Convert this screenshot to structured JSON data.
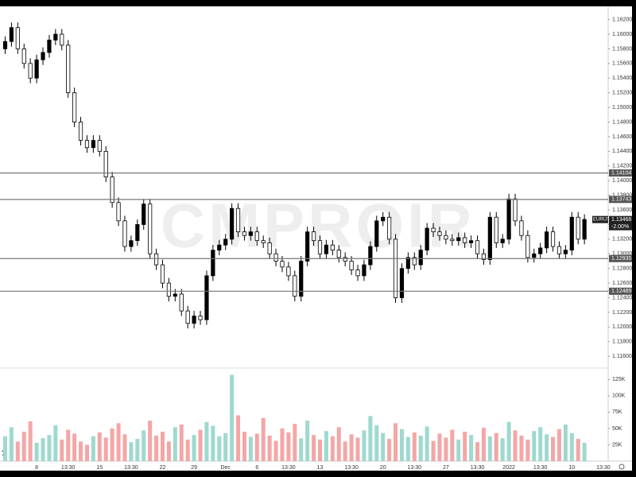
{
  "chart_data": {
    "type": "candlestick",
    "symbol": "EURUSD",
    "watermark": "CMPROIR",
    "change": "-2.00%",
    "last_price": {
      "value": 1.13468,
      "label": "1.13468"
    },
    "up_color": "#000000",
    "down_color": "#ffffff",
    "vol_up_color": "#9ed9cf",
    "vol_down_color": "#f4a6a6",
    "categories": [
      null,
      null,
      null,
      null,
      null,
      "8",
      null,
      null,
      null,
      null,
      "13:30",
      null,
      null,
      null,
      null,
      "15",
      null,
      null,
      null,
      null,
      "13:30",
      null,
      null,
      null,
      null,
      "22",
      null,
      null,
      null,
      null,
      "29",
      null,
      null,
      null,
      null,
      "Dec",
      null,
      null,
      null,
      null,
      "6",
      null,
      null,
      null,
      null,
      "13:30",
      null,
      null,
      null,
      null,
      "13",
      null,
      null,
      null,
      null,
      "13:30",
      null,
      null,
      null,
      null,
      "20",
      null,
      null,
      null,
      null,
      "13:30",
      null,
      null,
      null,
      null,
      "27",
      null,
      null,
      null,
      null,
      "13:30",
      null,
      null,
      null,
      null,
      "2022",
      null,
      null,
      null,
      null,
      "13:30",
      null,
      null,
      null,
      null,
      "10",
      null,
      null,
      null,
      null,
      "13:30"
    ],
    "open": [
      1.158,
      1.159,
      1.1609,
      1.158,
      1.156,
      1.154,
      1.1565,
      1.1575,
      1.1592,
      1.16,
      1.1585,
      1.152,
      1.148,
      1.1455,
      1.1445,
      1.1455,
      1.144,
      1.1405,
      1.137,
      1.1345,
      1.131,
      1.1318,
      1.134,
      1.1368,
      1.13,
      1.1285,
      1.126,
      1.1242,
      1.1245,
      1.1222,
      1.1205,
      1.1215,
      1.121,
      1.127,
      1.1305,
      1.1312,
      1.132,
      1.1362,
      1.133,
      1.1325,
      1.133,
      1.1318,
      1.1315,
      1.13,
      1.129,
      1.1282,
      1.127,
      1.1242,
      1.129,
      1.133,
      1.1318,
      1.13,
      1.1312,
      1.1305,
      1.1295,
      1.129,
      1.1278,
      1.127,
      1.1285,
      1.131,
      1.1345,
      1.135,
      1.132,
      1.124,
      1.128,
      1.1295,
      1.1285,
      1.1305,
      1.1335,
      1.133,
      1.1325,
      1.132,
      1.1318,
      1.1322,
      1.1315,
      1.1318,
      1.13,
      1.1292,
      1.135,
      1.1315,
      1.132,
      1.1375,
      1.1345,
      1.1325,
      1.1295,
      1.13,
      1.1308,
      1.133,
      1.131,
      1.13,
      1.1305,
      1.135,
      1.132,
      null,
      null,
      null
    ],
    "high": [
      1.1597,
      1.1616,
      1.1616,
      1.1587,
      1.1567,
      1.1572,
      1.1582,
      1.1599,
      1.1607,
      1.1607,
      1.1592,
      1.1527,
      1.1487,
      1.1462,
      1.1462,
      1.1462,
      1.1447,
      1.1412,
      1.1377,
      1.1352,
      1.1325,
      1.1347,
      1.1375,
      1.1375,
      1.1307,
      1.1292,
      1.1267,
      1.1252,
      1.1252,
      1.1229,
      1.1222,
      1.1222,
      1.1277,
      1.1312,
      1.1319,
      1.1327,
      1.1369,
      1.1369,
      1.1337,
      1.1337,
      1.1337,
      1.1325,
      1.1322,
      1.1307,
      1.1297,
      1.1289,
      1.1277,
      1.1297,
      1.1337,
      1.1337,
      1.1325,
      1.1319,
      1.1319,
      1.1312,
      1.1302,
      1.1297,
      1.1285,
      1.1292,
      1.1317,
      1.1352,
      1.1357,
      1.1357,
      1.1327,
      1.1287,
      1.1302,
      1.1302,
      1.1312,
      1.1342,
      1.1342,
      1.1337,
      1.1332,
      1.1327,
      1.1329,
      1.1329,
      1.1325,
      1.1325,
      1.1307,
      1.1357,
      1.1357,
      1.1327,
      1.1382,
      1.1382,
      1.1352,
      1.1332,
      1.1307,
      1.1315,
      1.1337,
      1.1337,
      1.1317,
      1.1312,
      1.1357,
      1.1357,
      1.1354,
      null,
      null,
      null
    ],
    "low": [
      1.1573,
      1.1583,
      1.1573,
      1.1553,
      1.1533,
      1.1533,
      1.1558,
      1.1568,
      1.1585,
      1.1578,
      1.1513,
      1.1473,
      1.1448,
      1.1438,
      1.1438,
      1.1433,
      1.1398,
      1.1363,
      1.1338,
      1.1303,
      1.1303,
      1.1311,
      1.1333,
      1.1293,
      1.1278,
      1.1253,
      1.1235,
      1.1235,
      1.1215,
      1.1198,
      1.1198,
      1.1203,
      1.1203,
      1.1263,
      1.1298,
      1.1305,
      1.1313,
      1.1323,
      1.1318,
      1.1318,
      1.1311,
      1.1308,
      1.1293,
      1.1283,
      1.1275,
      1.1263,
      1.1235,
      1.1235,
      1.1283,
      1.1311,
      1.1293,
      1.1293,
      1.1298,
      1.1288,
      1.1283,
      1.1271,
      1.1263,
      1.1263,
      1.1278,
      1.1303,
      1.1338,
      1.1313,
      1.1233,
      1.1233,
      1.1273,
      1.1278,
      1.1278,
      1.1298,
      1.1323,
      1.1318,
      1.1313,
      1.1311,
      1.1311,
      1.1308,
      1.1308,
      1.1293,
      1.1285,
      1.1285,
      1.1308,
      1.1308,
      1.1313,
      1.1338,
      1.1318,
      1.1288,
      1.1288,
      1.1293,
      1.1301,
      1.1303,
      1.1293,
      1.1293,
      1.1298,
      1.1313,
      1.1313,
      null,
      null,
      null
    ],
    "close": [
      1.159,
      1.1609,
      1.158,
      1.156,
      1.154,
      1.1565,
      1.1575,
      1.1592,
      1.16,
      1.1585,
      1.152,
      1.148,
      1.1455,
      1.1445,
      1.1455,
      1.144,
      1.1405,
      1.137,
      1.1345,
      1.131,
      1.1318,
      1.134,
      1.1368,
      1.13,
      1.1285,
      1.126,
      1.1242,
      1.1245,
      1.1222,
      1.1205,
      1.1215,
      1.121,
      1.127,
      1.1305,
      1.1312,
      1.132,
      1.1362,
      1.133,
      1.1325,
      1.133,
      1.1318,
      1.1315,
      1.13,
      1.129,
      1.1282,
      1.127,
      1.1242,
      1.129,
      1.133,
      1.1318,
      1.13,
      1.1312,
      1.1305,
      1.1295,
      1.129,
      1.1278,
      1.127,
      1.1285,
      1.131,
      1.1345,
      1.135,
      1.132,
      1.124,
      1.128,
      1.1295,
      1.1285,
      1.1305,
      1.1335,
      1.133,
      1.1325,
      1.132,
      1.1318,
      1.1322,
      1.1315,
      1.1318,
      1.13,
      1.1292,
      1.135,
      1.1315,
      1.132,
      1.1375,
      1.1345,
      1.1325,
      1.1295,
      1.13,
      1.1308,
      1.133,
      1.131,
      1.13,
      1.1305,
      1.135,
      1.132,
      1.1347,
      null,
      null,
      null
    ],
    "volume": [
      38000,
      52000,
      30000,
      45000,
      61000,
      28000,
      35000,
      40000,
      55000,
      33000,
      48000,
      42000,
      30000,
      25000,
      38000,
      44000,
      36000,
      50000,
      58000,
      41000,
      29000,
      34000,
      47000,
      62000,
      39000,
      45000,
      30000,
      52000,
      56000,
      33000,
      40000,
      48000,
      60000,
      54000,
      38000,
      43000,
      132000,
      70000,
      45000,
      37000,
      42000,
      66000,
      39000,
      31000,
      50000,
      44000,
      57000,
      35000,
      62000,
      40000,
      33000,
      46000,
      38000,
      52000,
      30000,
      41000,
      36000,
      47000,
      69000,
      55000,
      43000,
      34000,
      58000,
      49000,
      37000,
      44000,
      39000,
      53000,
      31000,
      42000,
      36000,
      48000,
      33000,
      45000,
      40000,
      29000,
      51000,
      38000,
      43000,
      35000,
      60000,
      47000,
      39000,
      33000,
      46000,
      52000,
      41000,
      37000,
      49000,
      56000,
      43000,
      34000,
      28000,
      null,
      null,
      null
    ],
    "ylim": [
      1.1145,
      1.1638
    ],
    "yticks": [
      {
        "value": 1.116,
        "label": "1.11600"
      },
      {
        "value": 1.118,
        "label": "1.11800"
      },
      {
        "value": 1.12,
        "label": "1.12000"
      },
      {
        "value": 1.122,
        "label": "1.12200"
      },
      {
        "value": 1.124,
        "label": "1.12400"
      },
      {
        "value": 1.126,
        "label": "1.12600"
      },
      {
        "value": 1.128,
        "label": "1.12800"
      },
      {
        "value": 1.13,
        "label": "1.13000"
      },
      {
        "value": 1.132,
        "label": "1.13200"
      },
      {
        "value": 1.134,
        "label": "1.13400"
      },
      {
        "value": 1.136,
        "label": "1.13600"
      },
      {
        "value": 1.138,
        "label": "1.13800"
      },
      {
        "value": 1.14,
        "label": "1.14000"
      },
      {
        "value": 1.142,
        "label": "1.14200"
      },
      {
        "value": 1.144,
        "label": "1.14400"
      },
      {
        "value": 1.146,
        "label": "1.14600"
      },
      {
        "value": 1.148,
        "label": "1.14800"
      },
      {
        "value": 1.15,
        "label": "1.15000"
      },
      {
        "value": 1.152,
        "label": "1.15200"
      },
      {
        "value": 1.154,
        "label": "1.15400"
      },
      {
        "value": 1.156,
        "label": "1.15600"
      },
      {
        "value": 1.158,
        "label": "1.15800"
      },
      {
        "value": 1.16,
        "label": "1.16000"
      },
      {
        "value": 1.162,
        "label": "1.16200"
      }
    ],
    "price_lines": [
      {
        "value": 1.14104,
        "label": "1.14104"
      },
      {
        "value": 1.13743,
        "label": "1.13743"
      },
      {
        "value": 1.12935,
        "label": "1.12935"
      },
      {
        "value": 1.12489,
        "label": "1.12489"
      }
    ],
    "vol_ylim": [
      0,
      140000
    ],
    "vol_ticks": [
      {
        "value": 25000,
        "label": "25K"
      },
      {
        "value": 50000,
        "label": "50K"
      },
      {
        "value": 75000,
        "label": "75K"
      },
      {
        "value": 100000,
        "label": "100K"
      },
      {
        "value": 125000,
        "label": "125K"
      }
    ]
  }
}
